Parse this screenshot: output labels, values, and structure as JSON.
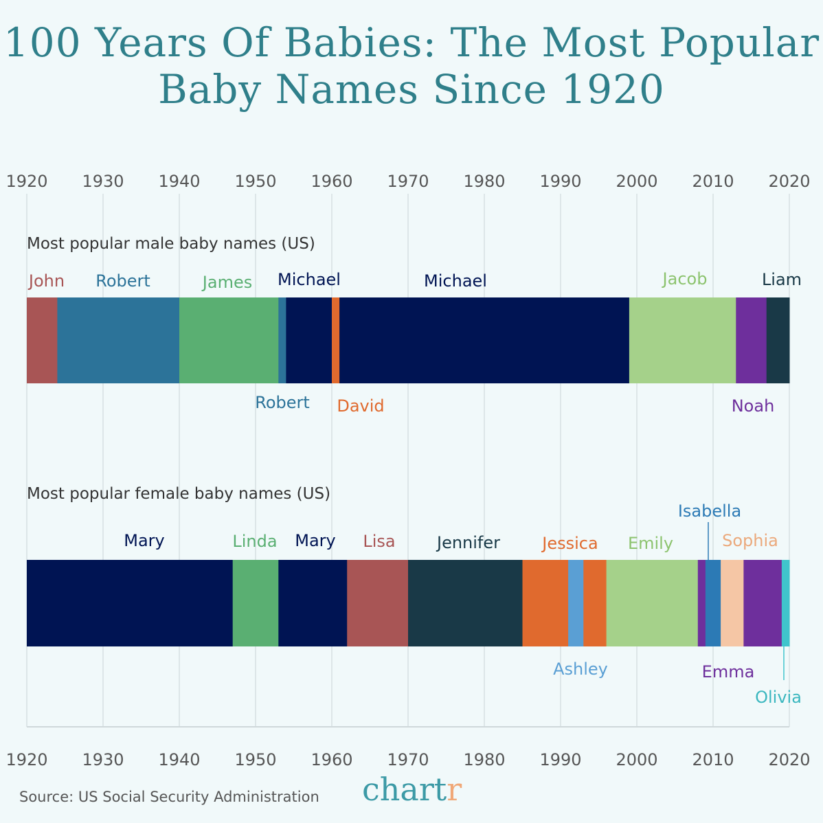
{
  "title": "100 Years Of Babies: The Most Popular Baby Names Since 1920",
  "source": "Source: US Social Security Administration",
  "logo": {
    "main": "chart",
    "accent": "r"
  },
  "chart_data": [
    {
      "type": "bar",
      "subtype": "timeline-stacked",
      "subtitle": "Most popular male baby names (US)",
      "xlim": [
        1920,
        2020
      ],
      "xticks": [
        1920,
        1930,
        1940,
        1950,
        1960,
        1970,
        1980,
        1990,
        2000,
        2010,
        2020
      ],
      "grid": true,
      "segments": [
        {
          "name": "John",
          "start": 1920,
          "end": 1924,
          "color": "#a85555",
          "label": "above"
        },
        {
          "name": "Robert",
          "start": 1924,
          "end": 1940,
          "color": "#2c7399",
          "label": "above"
        },
        {
          "name": "James",
          "start": 1940,
          "end": 1953,
          "color": "#5aaf72",
          "label": "above"
        },
        {
          "name": "Robert",
          "start": 1953,
          "end": 1954,
          "color": "#2c7399",
          "label": "below"
        },
        {
          "name": "Michael",
          "start": 1954,
          "end": 1960,
          "color": "#001453",
          "label": "above"
        },
        {
          "name": "David",
          "start": 1960,
          "end": 1961,
          "color": "#e06a2e",
          "label": "below"
        },
        {
          "name": "Michael",
          "start": 1961,
          "end": 1999,
          "color": "#001453",
          "label": "above"
        },
        {
          "name": "Jacob",
          "start": 1999,
          "end": 2013,
          "color": "#a5d18a",
          "label": "above"
        },
        {
          "name": "Noah",
          "start": 2013,
          "end": 2017,
          "color": "#6e2f9c",
          "label": "below"
        },
        {
          "name": "Liam",
          "start": 2017,
          "end": 2020,
          "color": "#193947",
          "label": "above"
        }
      ]
    },
    {
      "type": "bar",
      "subtype": "timeline-stacked",
      "subtitle": "Most popular female baby names (US)",
      "xlim": [
        1920,
        2020
      ],
      "xticks": [
        1920,
        1930,
        1940,
        1950,
        1960,
        1970,
        1980,
        1990,
        2000,
        2010,
        2020
      ],
      "grid": true,
      "segments": [
        {
          "name": "Mary",
          "start": 1920,
          "end": 1947,
          "color": "#001453",
          "label": "above"
        },
        {
          "name": "Linda",
          "start": 1947,
          "end": 1953,
          "color": "#5aaf72",
          "label": "above"
        },
        {
          "name": "Mary",
          "start": 1953,
          "end": 1962,
          "color": "#001453",
          "label": "above"
        },
        {
          "name": "Lisa",
          "start": 1962,
          "end": 1970,
          "color": "#a85555",
          "label": "above"
        },
        {
          "name": "Jennifer",
          "start": 1970,
          "end": 1985,
          "color": "#193947",
          "label": "above"
        },
        {
          "name": "Jessica",
          "start": 1985,
          "end": 1991,
          "color": "#e06a2e",
          "label": "above"
        },
        {
          "name": "Ashley",
          "start": 1991,
          "end": 1993,
          "color": "#5a9fd4",
          "label": "below"
        },
        {
          "name": "Jessica",
          "start": 1993,
          "end": 1996,
          "color": "#e06a2e",
          "label": "none"
        },
        {
          "name": "Emily",
          "start": 1996,
          "end": 2008,
          "color": "#a5d18a",
          "label": "above"
        },
        {
          "name": "Emma",
          "start": 2008,
          "end": 2009,
          "color": "#6e2f9c",
          "label": "none"
        },
        {
          "name": "Isabella",
          "start": 2009,
          "end": 2011,
          "color": "#2c7ab5",
          "label": "above"
        },
        {
          "name": "Sophia",
          "start": 2011,
          "end": 2014,
          "color": "#f5c6a5",
          "label": "above"
        },
        {
          "name": "Emma",
          "start": 2014,
          "end": 2019,
          "color": "#6e2f9c",
          "label": "below"
        },
        {
          "name": "Olivia",
          "start": 2019,
          "end": 2020,
          "color": "#40c4cc",
          "label": "below"
        }
      ]
    }
  ]
}
